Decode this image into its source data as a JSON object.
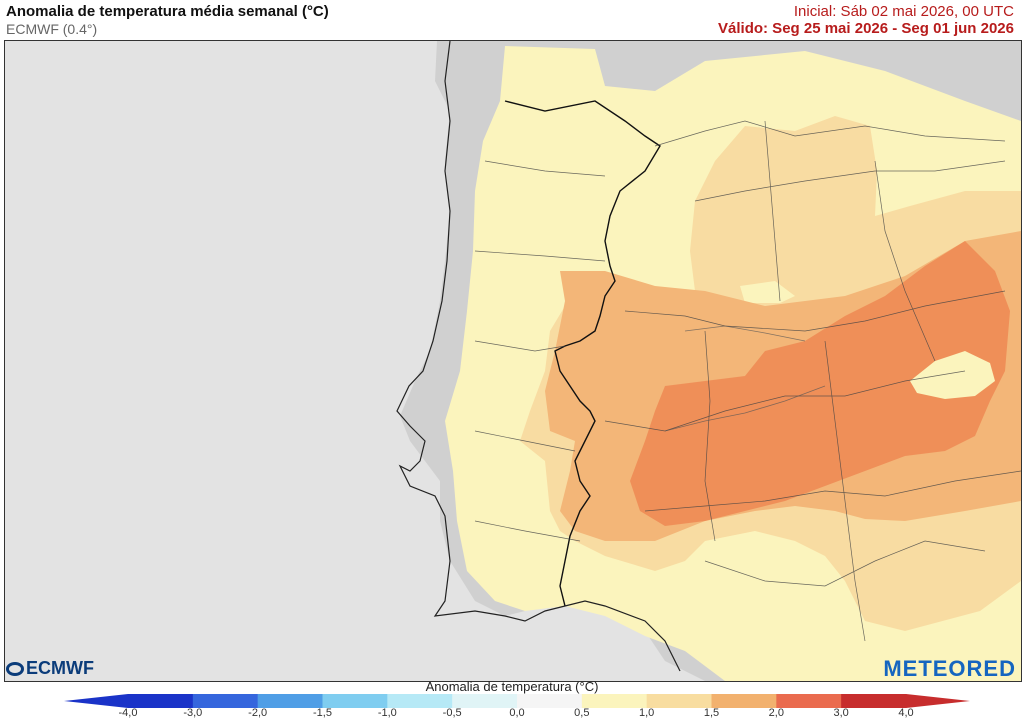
{
  "header": {
    "title": "Anomalia de temperatura média semanal (°C)",
    "model": "ECMWF (0.4°)",
    "initial": "Inicial: Sáb 02 mai 2026, 00 UTC",
    "valid": "Válido: Seg 25 mai 2026 - Seg 01 jun 2026"
  },
  "logos": {
    "left": "ECMWF",
    "right": "METEORED"
  },
  "legend": {
    "title": "Anomalia de temperatura (°C)",
    "ticks": [
      "-4,0",
      "-3,0",
      "-2,0",
      "-1,5",
      "-1,0",
      "-0,5",
      "0,0",
      "0,5",
      "1,0",
      "1,5",
      "2,0",
      "3,0",
      "4,0"
    ],
    "colors": [
      "#1a33c8",
      "#3566dd",
      "#4f9ee6",
      "#7fcdf0",
      "#b6e9f6",
      "#e0f4f6",
      "#f5f5f5",
      "#fbf4bd",
      "#f8ddA0",
      "#f2b16e",
      "#ea6b4e",
      "#c72d2d"
    ]
  },
  "map": {
    "sea_color": "#e2e2e2",
    "land_color": "#cdcdcd",
    "anomaly_colors": {
      "a0_5": "#fbf4bd",
      "a1_0": "#f8dca2",
      "a1_5": "#f3b678",
      "a2_0": "#ef8f58"
    }
  }
}
